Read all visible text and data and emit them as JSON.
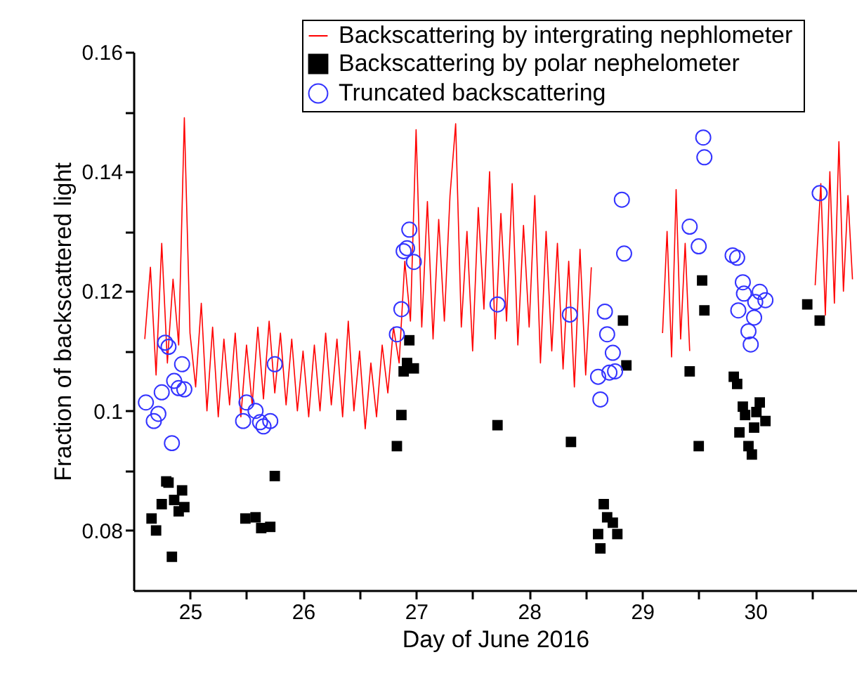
{
  "chart_data": {
    "type": "scatter",
    "xlabel": "Day of June 2016",
    "ylabel": "Fraction of backscattered light",
    "xlim": [
      24.5,
      30.9
    ],
    "ylim": [
      0.07,
      0.16
    ],
    "xticks": [
      25,
      {
        "value": 25.5,
        "label": null
      },
      26,
      {
        "value": 26.5,
        "label": null
      },
      27,
      {
        "value": 27.5,
        "label": null
      },
      28,
      {
        "value": 28.5,
        "label": null
      },
      29,
      {
        "value": 29.5,
        "label": null
      },
      30,
      {
        "value": 30.5,
        "label": null
      }
    ],
    "yticks": [
      0.08,
      {
        "value": 0.09,
        "label": null
      },
      0.1,
      {
        "value": 0.11,
        "label": null
      },
      0.12,
      {
        "value": 0.13,
        "label": null
      },
      0.14,
      {
        "value": 0.15,
        "label": null
      },
      0.16
    ],
    "legend": "top right",
    "series": [
      {
        "name": "Backscattering by intergrating  nephlometer",
        "type": "line",
        "marker": "none",
        "color": "#ff0000",
        "x": [
          24.6,
          24.65,
          24.7,
          24.75,
          24.8,
          24.85,
          24.9,
          24.95,
          25.0,
          25.05,
          25.1,
          25.15,
          25.2,
          25.25,
          25.3,
          25.35,
          25.4,
          25.45,
          25.5,
          25.55,
          25.6,
          25.65,
          25.7,
          25.75,
          25.8,
          25.85,
          25.9,
          25.95,
          26.0,
          26.05,
          26.1,
          26.15,
          26.2,
          26.25,
          26.3,
          26.35,
          26.4,
          26.45,
          26.5,
          26.55,
          26.6,
          26.65,
          26.7,
          26.75,
          26.8,
          26.85,
          26.9,
          26.95,
          27.0,
          27.05,
          27.1,
          27.15,
          27.2,
          27.25,
          27.3,
          27.35,
          27.4,
          27.45,
          27.5,
          27.55,
          27.6,
          27.65,
          27.7,
          27.75,
          27.8,
          27.85,
          27.9,
          27.95,
          28.0,
          28.05,
          28.1,
          28.15,
          28.2,
          28.25,
          28.3,
          28.35,
          28.4,
          28.45,
          28.5,
          28.55,
          28.6,
          29.18,
          29.22,
          29.26,
          29.3,
          29.34,
          29.38,
          29.42,
          29.45,
          30.53,
          30.58,
          30.62,
          30.66,
          30.7,
          30.74,
          30.78,
          30.82,
          30.86
        ],
        "values": [
          0.112,
          0.124,
          0.106,
          0.128,
          0.108,
          0.122,
          0.111,
          0.149,
          0.113,
          0.104,
          0.118,
          0.1,
          0.114,
          0.099,
          0.112,
          0.101,
          0.113,
          0.099,
          0.111,
          0.101,
          0.114,
          0.102,
          0.115,
          0.103,
          0.113,
          0.101,
          0.112,
          0.1,
          0.11,
          0.099,
          0.111,
          0.1,
          0.113,
          0.101,
          0.112,
          0.099,
          0.115,
          0.1,
          0.11,
          0.097,
          0.108,
          0.099,
          0.111,
          0.103,
          0.114,
          0.108,
          0.125,
          0.115,
          0.147,
          0.114,
          0.135,
          0.112,
          0.132,
          0.115,
          0.136,
          0.148,
          0.114,
          0.13,
          0.11,
          0.134,
          0.117,
          0.14,
          0.112,
          0.133,
          0.115,
          0.138,
          0.111,
          0.131,
          0.114,
          0.136,
          0.108,
          0.13,
          0.11,
          0.128,
          0.107,
          0.125,
          0.104,
          0.127,
          0.106,
          0.124,
          null,
          0.113,
          0.13,
          0.109,
          0.137,
          0.112,
          0.128,
          0.11,
          null,
          0.121,
          0.138,
          0.116,
          0.14,
          0.118,
          0.145,
          0.12,
          0.136,
          0.122
        ]
      },
      {
        "name": "Backscattering by polar nephelometer",
        "marker": "square",
        "color": "#000000",
        "x": [
          24.66,
          24.7,
          24.75,
          24.79,
          24.81,
          24.86,
          24.93,
          24.9,
          24.95,
          24.84,
          25.49,
          25.58,
          25.63,
          25.71,
          25.75,
          26.83,
          26.87,
          26.89,
          26.92,
          26.98,
          26.94,
          27.72,
          28.37,
          28.66,
          28.69,
          28.74,
          28.61,
          28.78,
          28.63,
          28.83,
          28.86,
          29.42,
          29.5,
          29.53,
          29.55,
          29.81,
          29.84,
          29.89,
          29.91,
          30.04,
          30.09,
          29.99,
          29.86,
          29.94,
          29.97,
          30.01,
          30.46,
          30.57
        ],
        "values": [
          0.082,
          0.08,
          0.0844,
          0.0882,
          0.088,
          0.0851,
          0.0867,
          0.0832,
          0.0839,
          0.0756,
          0.082,
          0.0822,
          0.0804,
          0.0806,
          0.0891,
          0.0941,
          0.0993,
          0.1066,
          0.108,
          0.1071,
          0.1118,
          0.0976,
          0.0948,
          0.0844,
          0.0822,
          0.0813,
          0.0794,
          0.0794,
          0.077,
          0.1151,
          0.1076,
          0.1066,
          0.0941,
          0.1218,
          0.1168,
          0.1057,
          0.1045,
          0.1007,
          0.0993,
          0.1014,
          0.0983,
          0.0972,
          0.0964,
          0.0941,
          0.0927,
          0.0998,
          0.1178,
          0.1151
        ]
      },
      {
        "name": " Truncated backscattering",
        "marker": "circle",
        "color": "#3333ff",
        "x": [
          24.61,
          24.68,
          24.72,
          24.75,
          24.78,
          24.81,
          24.86,
          24.84,
          24.93,
          24.9,
          24.95,
          25.5,
          25.47,
          25.58,
          25.62,
          25.65,
          25.71,
          25.75,
          26.83,
          26.87,
          26.89,
          26.92,
          26.94,
          26.98,
          27.72,
          28.36,
          28.82,
          28.84,
          28.67,
          28.69,
          28.74,
          28.61,
          28.71,
          28.76,
          28.63,
          29.42,
          29.5,
          29.54,
          29.55,
          29.8,
          29.84,
          29.89,
          29.9,
          30.04,
          30.09,
          30.0,
          29.85,
          29.99,
          29.94,
          29.96,
          30.57
        ],
        "values": [
          0.1014,
          0.0983,
          0.0995,
          0.1031,
          0.1114,
          0.1107,
          0.105,
          0.0946,
          0.1078,
          0.1038,
          0.1036,
          0.1014,
          0.0983,
          0.1,
          0.0981,
          0.0974,
          0.0983,
          0.1078,
          0.1128,
          0.117,
          0.1267,
          0.1272,
          0.1303,
          0.1249,
          0.1178,
          0.1161,
          0.1353,
          0.1263,
          0.1166,
          0.1128,
          0.1097,
          0.1057,
          0.1064,
          0.1066,
          0.1019,
          0.1308,
          0.1275,
          0.1457,
          0.1424,
          0.126,
          0.1256,
          0.1215,
          0.1196,
          0.1199,
          0.1185,
          0.1182,
          0.1168,
          0.1156,
          0.1133,
          0.1111,
          0.1364
        ]
      }
    ]
  }
}
